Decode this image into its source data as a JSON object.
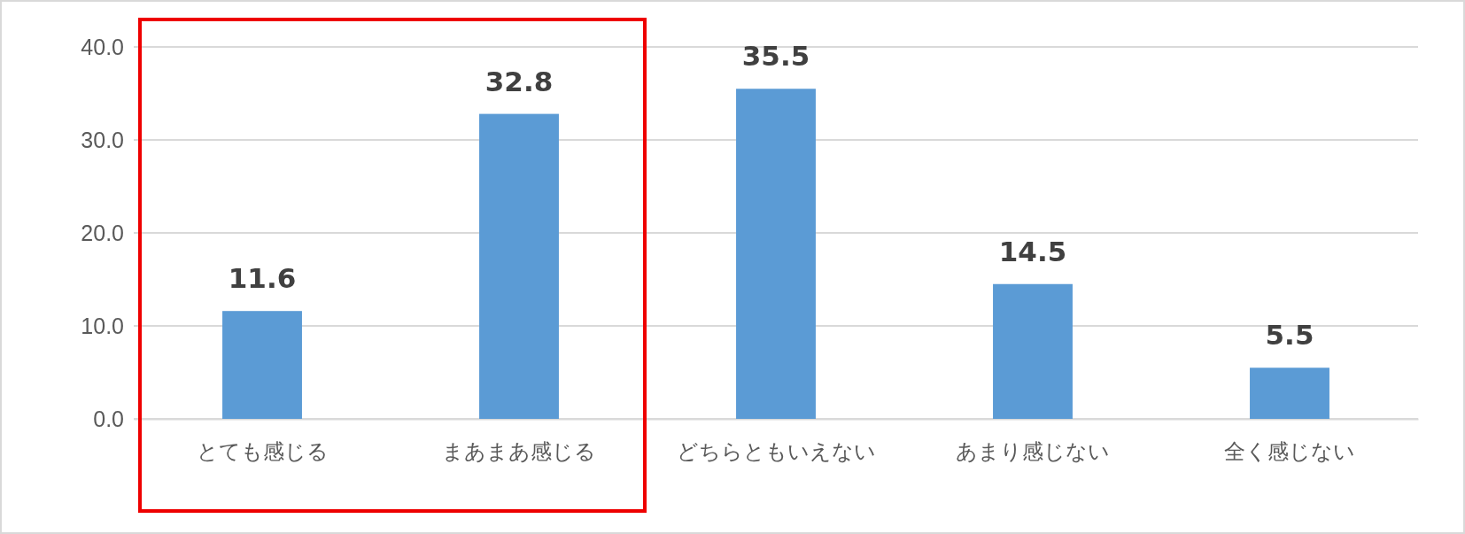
{
  "chart_data": {
    "type": "bar",
    "categories": [
      "とても感じる",
      "まあまあ感じる",
      "どちらともいえない",
      "あまり感じない",
      "全く感じない"
    ],
    "values": [
      11.6,
      32.8,
      35.5,
      14.5,
      5.5
    ],
    "color": "#5b9bd5",
    "ylim": [
      0,
      40
    ],
    "yticks": [
      {
        "value": 0,
        "label": "0.0"
      },
      {
        "value": 10,
        "label": "10.0"
      },
      {
        "value": 20,
        "label": "20.0"
      },
      {
        "value": 30,
        "label": "30.0"
      },
      {
        "value": 40,
        "label": "40.0"
      }
    ],
    "grid": "y",
    "data_labels": true
  }
}
